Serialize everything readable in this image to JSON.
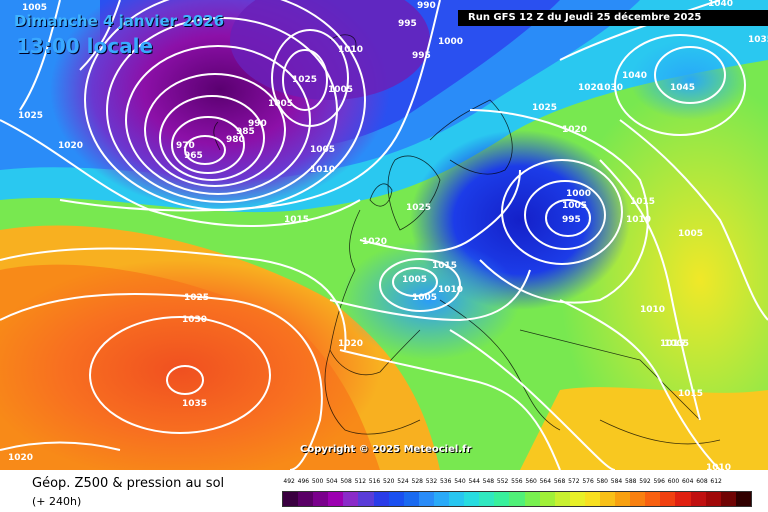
{
  "header": {
    "date": "Dimanche 4 janvier 2026",
    "time": "13:00 locale",
    "run": "Run GFS 12 Z du Jeudi 25 décembre 2025"
  },
  "copyright": "Copyright © 2025 Meteociel.fr",
  "footer": {
    "title": "Géop. Z500 & pression au sol",
    "subtitle": "(+ 240h)"
  },
  "scale": {
    "values": [
      "492",
      "496",
      "500",
      "504",
      "508",
      "512",
      "516",
      "520",
      "524",
      "528",
      "532",
      "536",
      "540",
      "544",
      "548",
      "552",
      "556",
      "560",
      "564",
      "568",
      "572",
      "576",
      "580",
      "584",
      "588",
      "592",
      "596",
      "600",
      "604",
      "608",
      "612"
    ],
    "colors": [
      "#3a0040",
      "#5a0066",
      "#7a008c",
      "#9c00b0",
      "#8a2bc8",
      "#5a3cd8",
      "#2a3ce8",
      "#1a50f0",
      "#1a6af0",
      "#2a8cf8",
      "#2aaaf8",
      "#28c6f0",
      "#28dce0",
      "#30e8c0",
      "#38f09c",
      "#50f078",
      "#78f050",
      "#a0f038",
      "#c8f030",
      "#e8f028",
      "#f8e020",
      "#f8c018",
      "#f8a010",
      "#f88010",
      "#f86010",
      "#f04010",
      "#e02010",
      "#c01010",
      "#a00808",
      "#700404",
      "#300000"
    ]
  },
  "isobar_labels": [
    "1005",
    "995",
    "990",
    "1040",
    "1035",
    "1025",
    "1020",
    "1010",
    "1005",
    "1000",
    "995",
    "1025",
    "1005",
    "970",
    "965",
    "985",
    "990",
    "980",
    "1005",
    "1010",
    "1015",
    "1025",
    "1020",
    "1010",
    "1005",
    "1025",
    "1020",
    "1030",
    "1040",
    "1045",
    "1000",
    "1005",
    "995",
    "1015",
    "1010",
    "1005",
    "1015",
    "1020",
    "1005",
    "1010",
    "1005",
    "1025",
    "1030",
    "1035",
    "1020",
    "1015",
    "1015",
    "1020",
    "1010"
  ]
}
